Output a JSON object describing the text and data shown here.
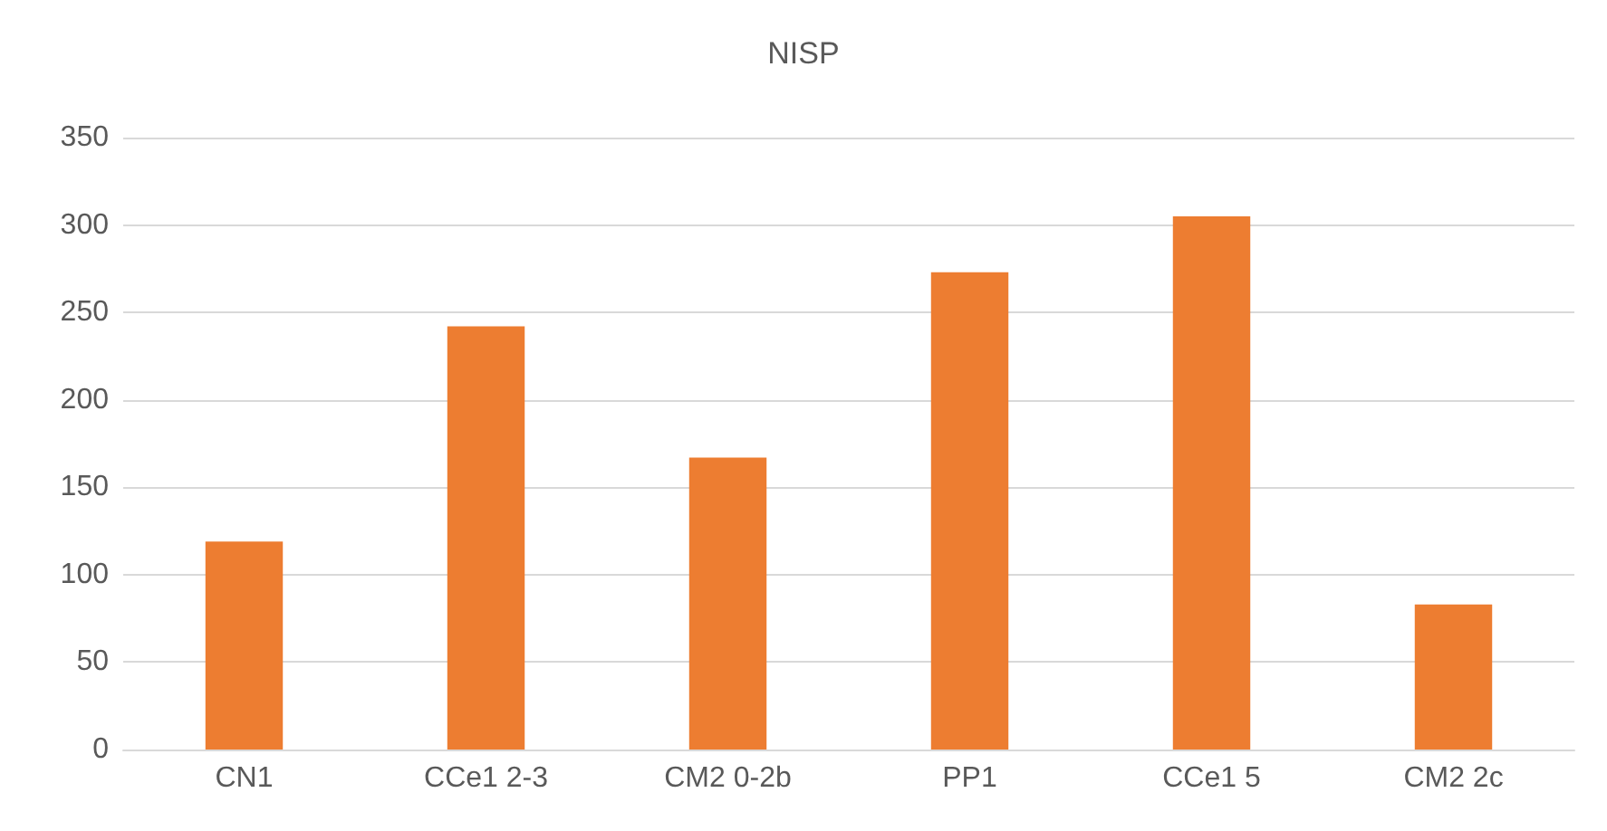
{
  "chart_data": {
    "type": "bar",
    "title": "NISP",
    "categories": [
      "CN1",
      "CCe1 2-3",
      "CM2 0-2b",
      "PP1",
      "CCe1 5",
      "CM2 2c"
    ],
    "values": [
      119,
      242,
      167,
      273,
      305,
      83
    ],
    "color": "#ed7d31",
    "ylim": [
      0,
      350
    ],
    "yticks": [
      0,
      50,
      100,
      150,
      200,
      250,
      300,
      350
    ],
    "grid": "y"
  }
}
